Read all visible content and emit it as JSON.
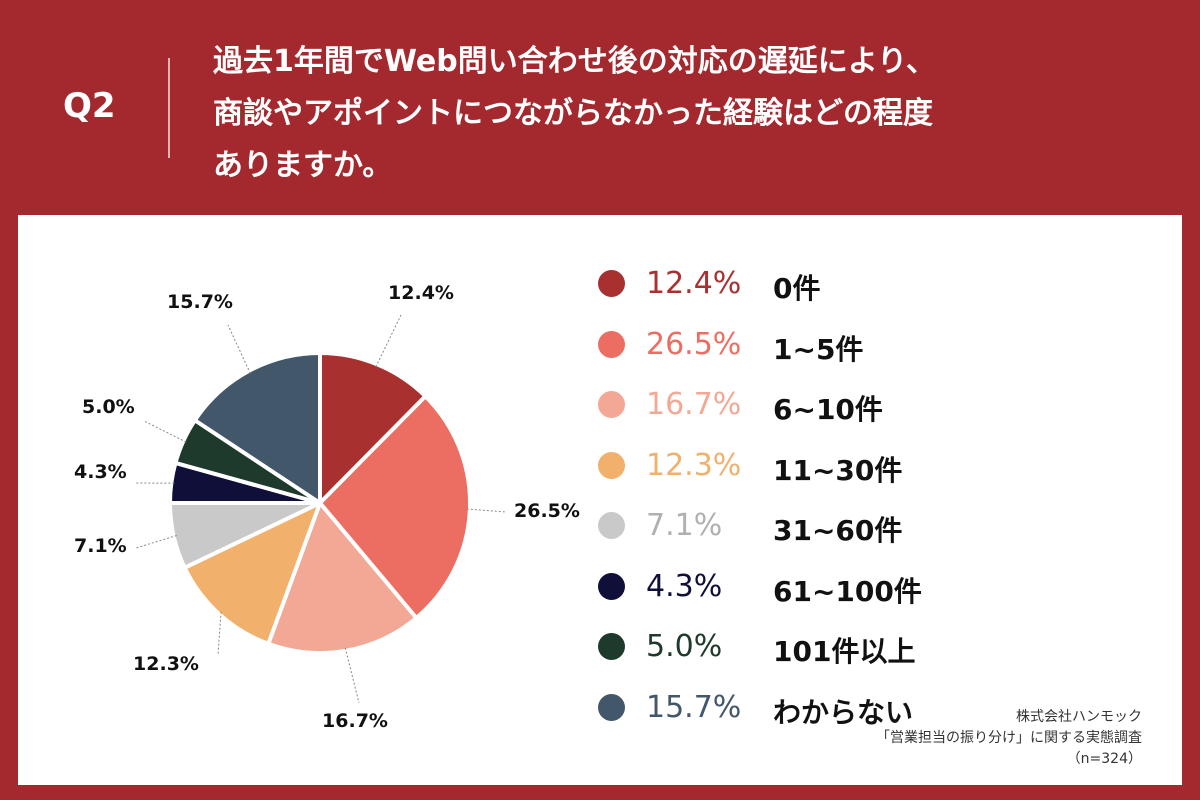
{
  "header": {
    "question_label": "Q2",
    "question_text": "過去1年間でWeb問い合わせ後の対応の遅延により、\n商談やアポイントにつながらなかった経験はどの程度\nありますか。"
  },
  "colors": {
    "header_bg": "#a3292e",
    "panel_bg": "#ffffff"
  },
  "chart_data": {
    "type": "pie",
    "categories": [
      "0件",
      "1~5件",
      "6~10件",
      "11~30件",
      "31~60件",
      "61~100件",
      "101件以上",
      "わからない"
    ],
    "values": [
      12.4,
      26.5,
      16.7,
      12.3,
      7.1,
      4.3,
      5.0,
      15.7
    ],
    "labels": [
      "12.4%",
      "26.5%",
      "16.7%",
      "12.3%",
      "7.1%",
      "4.3%",
      "5.0%",
      "15.7%"
    ],
    "colors": [
      "#a8302f",
      "#ec6e62",
      "#f2a895",
      "#f1b06c",
      "#c9c9c9",
      "#0f0f3a",
      "#1e3a2c",
      "#425769"
    ],
    "start_angle_deg": 0,
    "direction": "clockwise",
    "legend_position": "right"
  },
  "source": {
    "line1": "株式会社ハンモック",
    "line2": "「営業担当の振り分け」に関する実態調査",
    "line3": "（n=324）"
  }
}
